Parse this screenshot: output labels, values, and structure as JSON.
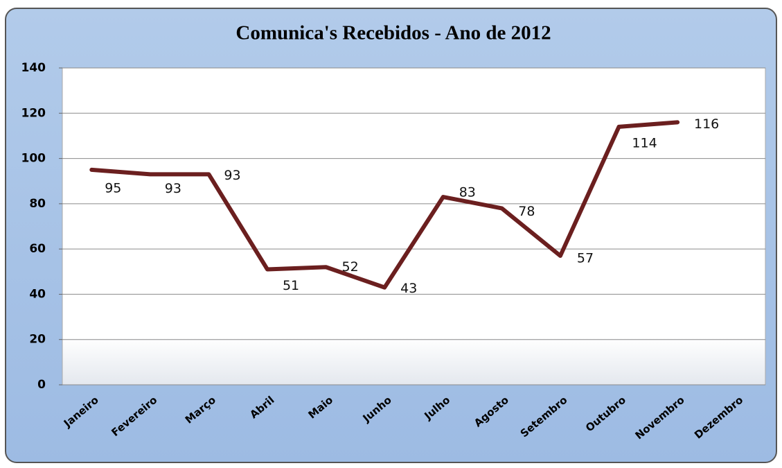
{
  "chart_data": {
    "type": "line",
    "title": "Comunica's Recebidos - Ano de 2012",
    "categories": [
      "Janeiro",
      "Fevereiro",
      "Março",
      "Abril",
      "Maio",
      "Junho",
      "Julho",
      "Agosto",
      "Setembro",
      "Outubro",
      "Novembro",
      "Dezembro"
    ],
    "series": [
      {
        "color": "#6b1f1f",
        "values": [
          95,
          93,
          93,
          51,
          52,
          43,
          83,
          78,
          57,
          114,
          116,
          null
        ]
      }
    ],
    "ylim": [
      0,
      140
    ],
    "yticks": [
      0,
      20,
      40,
      60,
      80,
      100,
      120,
      140
    ],
    "grid": true
  }
}
